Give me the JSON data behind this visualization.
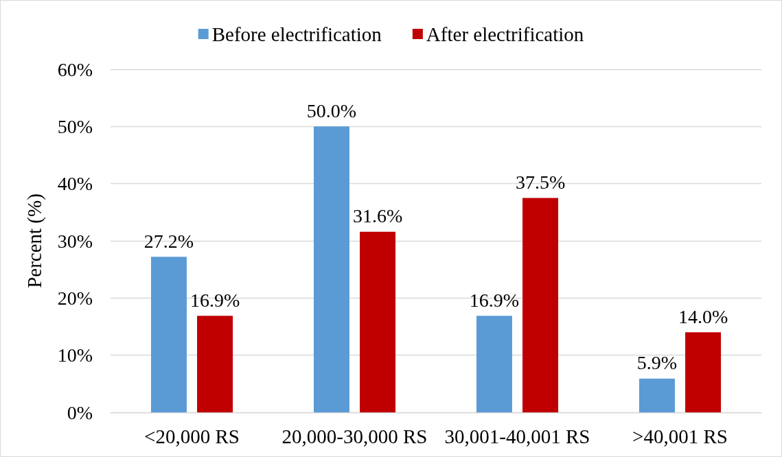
{
  "chart_data": {
    "type": "bar",
    "ylabel": "Percent (%)",
    "categories": [
      "<20,000 RS",
      "20,000-30,000 RS",
      "30,001-40,001 RS",
      ">40,001 RS"
    ],
    "series": [
      {
        "name": "Before electrification",
        "color": "#5b9bd5",
        "values": [
          27.2,
          50.0,
          16.9,
          5.9
        ],
        "value_labels": [
          "27.2%",
          "50.0%",
          "16.9%",
          "5.9%"
        ]
      },
      {
        "name": "After electrification",
        "color": "#c00000",
        "values": [
          16.9,
          31.6,
          37.5,
          14.0
        ],
        "value_labels": [
          "16.9%",
          "31.6%",
          "37.5%",
          "14.0%"
        ]
      }
    ],
    "ylim": [
      0,
      60
    ],
    "yticks": [
      {
        "value": 0,
        "label": "0%"
      },
      {
        "value": 10,
        "label": "10%"
      },
      {
        "value": 20,
        "label": "20%"
      },
      {
        "value": 30,
        "label": "30%"
      },
      {
        "value": 40,
        "label": "40%"
      },
      {
        "value": 50,
        "label": "50%"
      },
      {
        "value": 60,
        "label": "60%"
      }
    ],
    "grid": "y",
    "legend": "top"
  }
}
